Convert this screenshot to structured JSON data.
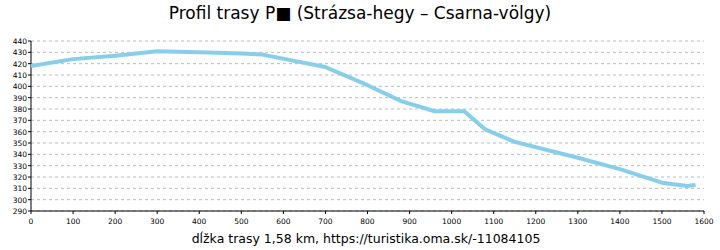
{
  "chart_data": {
    "type": "line",
    "title": "Profil trasy P■ (Strázsa-hegy – Csarna-völgy)",
    "x_label": "dĺžka trasy 1,58 km, https://turistika.oma.sk/-11084105",
    "x": [
      0,
      100,
      200,
      300,
      400,
      500,
      550,
      700,
      800,
      880,
      960,
      1030,
      1080,
      1150,
      1300,
      1400,
      1500,
      1560,
      1580
    ],
    "values": [
      418,
      424,
      427,
      431,
      430,
      429,
      428,
      417,
      401,
      387,
      378,
      378,
      362,
      351,
      337,
      327,
      315,
      312,
      313
    ],
    "color": "#87ceeb",
    "xlim": [
      0,
      1600
    ],
    "xticks": [
      0,
      100,
      200,
      300,
      400,
      500,
      600,
      700,
      800,
      900,
      1000,
      1100,
      1200,
      1300,
      1400,
      1500,
      1600
    ],
    "ylim": [
      290,
      440
    ],
    "yticks": [
      290,
      300,
      310,
      320,
      330,
      340,
      350,
      360,
      370,
      380,
      390,
      400,
      410,
      420,
      430,
      440
    ],
    "grid": true
  }
}
